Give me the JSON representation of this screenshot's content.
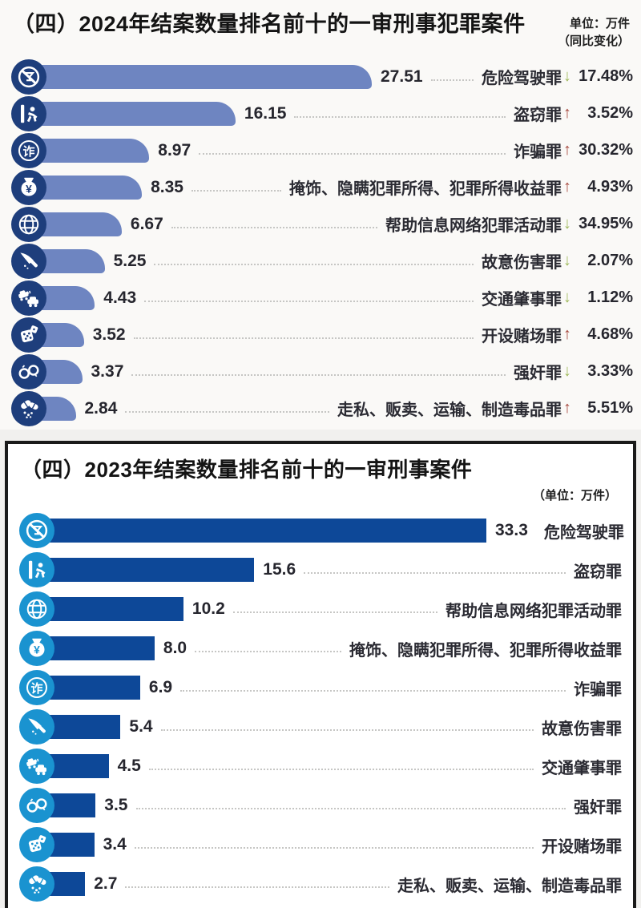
{
  "colors": {
    "up_arrow": "#a6473d",
    "down_arrow": "#9fb85a",
    "chart_2024_bar": "#6e85c1",
    "chart_2024_icon": "#1e3e7c",
    "chart_2023_bar": "#0d4898",
    "chart_2023_icon": "#1a93d0",
    "frame": "#1a1a1a"
  },
  "chart_data": [
    {
      "type": "bar",
      "orientation": "horizontal",
      "title": "（四）2024年结案数量排名前十的一审刑事犯罪案件",
      "unit": "单位：万件",
      "note": "（同比变化）",
      "xlim": [
        0,
        27.51
      ],
      "grid": false,
      "bar_color": "#6e85c1",
      "icon_color": "#1e3e7c",
      "categories": [
        "危险驾驶罪",
        "盗窃罪",
        "诈骗罪",
        "掩饰、隐瞒犯罪所得、犯罪所得收益罪",
        "帮助信息网络犯罪活动罪",
        "故意伤害罪",
        "交通肇事罪",
        "开设赌场罪",
        "强奸罪",
        "走私、贩卖、运输、制造毒品罪"
      ],
      "values": [
        27.51,
        16.15,
        8.97,
        8.35,
        6.67,
        5.25,
        4.43,
        3.52,
        3.37,
        2.84
      ],
      "value_labels": [
        "27.51",
        "16.15",
        "8.97",
        "8.35",
        "6.67",
        "5.25",
        "4.43",
        "3.52",
        "3.37",
        "2.84"
      ],
      "yoy_changes": [
        {
          "dir": "down",
          "pct": "17.48%"
        },
        {
          "dir": "up",
          "pct": "3.52%"
        },
        {
          "dir": "up",
          "pct": "30.32%"
        },
        {
          "dir": "up",
          "pct": "4.93%"
        },
        {
          "dir": "down",
          "pct": "34.95%"
        },
        {
          "dir": "down",
          "pct": "2.07%"
        },
        {
          "dir": "down",
          "pct": "1.12%"
        },
        {
          "dir": "up",
          "pct": "4.68%"
        },
        {
          "dir": "down",
          "pct": "3.33%"
        },
        {
          "dir": "up",
          "pct": "5.51%"
        }
      ],
      "icons": [
        "no-drink-icon",
        "thief-icon",
        "fraud-icon",
        "moneybag-icon",
        "network-icon",
        "knife-icon",
        "car-crash-icon",
        "dice-icon",
        "handcuffs-icon",
        "drugs-icon"
      ]
    },
    {
      "type": "bar",
      "orientation": "horizontal",
      "title": "（四）2023年结案数量排名前十的一审刑事案件",
      "unit": "（单位：万件）",
      "note": "",
      "xlim": [
        0,
        33.3
      ],
      "grid": false,
      "bar_color": "#0d4898",
      "icon_color": "#1a93d0",
      "categories": [
        "危险驾驶罪",
        "盗窃罪",
        "帮助信息网络犯罪活动罪",
        "掩饰、隐瞒犯罪所得、犯罪所得收益罪",
        "诈骗罪",
        "故意伤害罪",
        "交通肇事罪",
        "强奸罪",
        "开设赌场罪",
        "走私、贩卖、运输、制造毒品罪"
      ],
      "values": [
        33.3,
        15.6,
        10.2,
        8.0,
        6.9,
        5.4,
        4.5,
        3.5,
        3.4,
        2.7
      ],
      "value_labels": [
        "33.3",
        "15.6",
        "10.2",
        "8.0",
        "6.9",
        "5.4",
        "4.5",
        "3.5",
        "3.4",
        "2.7"
      ],
      "yoy_changes": null,
      "icons": [
        "no-drink-icon",
        "thief-icon",
        "network-icon",
        "moneybag-icon",
        "fraud-icon",
        "knife-icon",
        "car-crash-icon",
        "handcuffs-icon",
        "dice-icon",
        "drugs-icon"
      ]
    }
  ]
}
